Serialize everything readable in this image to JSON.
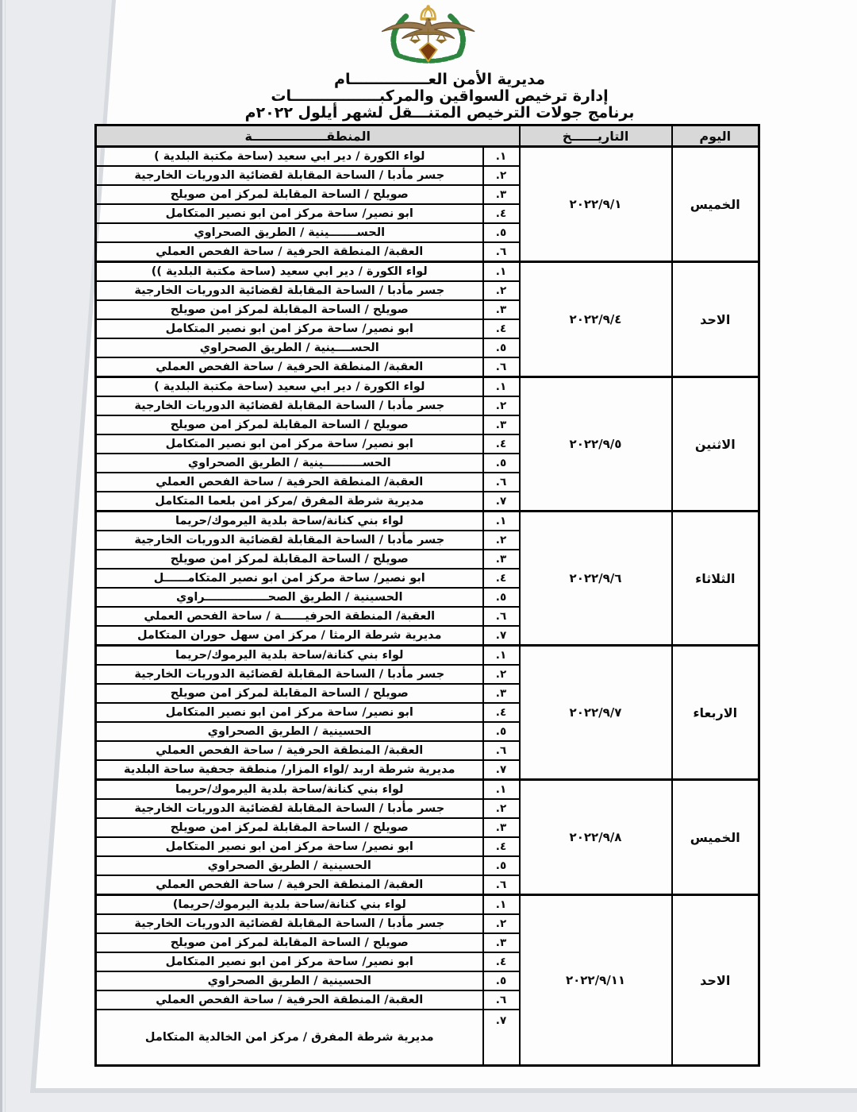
{
  "header": {
    "org_line1": "مديرية الأمن العـــــــــــــــام",
    "org_line2": "إدارة ترخيص السواقين والمركبـــــــــــــــــات",
    "program_title": "برنامج جولات الترخيص المتنـــقل لشهر  أيلول   ٢٠٢٢م"
  },
  "logo": {
    "name": "jordan-public-security-emblem",
    "colors": {
      "wreath": "#2e8540",
      "eagle": "#97774b",
      "eagle_dark": "#6e5431",
      "crown": "#d2a73e",
      "scales": "#8a6d2f",
      "shield": "#7a3b10",
      "shield_border": "#caa23a"
    }
  },
  "colors": {
    "header_bg": "#d8d8d8",
    "border": "#000000",
    "paper": "#fdfdfe",
    "page_background": "#e9ebef"
  },
  "table": {
    "headers": {
      "day": "اليوم",
      "date": "التاريــــــخ",
      "area": "المنطقـــــــــــــــــة"
    },
    "blocks": [
      {
        "day": "الخميس",
        "date": "٢٠٢٢/٩/١",
        "rows": [
          {
            "num": "١.",
            "area": "لواء الكورة / دير ابي سعيد (ساحة مكتبة البلدية )"
          },
          {
            "num": "٢.",
            "area": "جسر مأدبا / الساحة المقابلة لقضائية الدوريات الخارجية"
          },
          {
            "num": "٣.",
            "area": "صويلح / الساحة المقابلة لمركز امن صويلح"
          },
          {
            "num": "٤.",
            "area": "ابو نصير/ ساحة مركز امن ابو نصير المتكامل"
          },
          {
            "num": "٥.",
            "area": "الحســـــــينية / الطريق الصحراوي"
          },
          {
            "num": "٦.",
            "area": "العقبة/ المنطقة الحرفية / ساحة الفحص العملي"
          }
        ]
      },
      {
        "day": "الاحد",
        "date": "٢٠٢٢/٩/٤",
        "rows": [
          {
            "num": "١.",
            "area": "لواء الكورة / دير ابي سعيد (ساحة مكتبة البلدية ))"
          },
          {
            "num": "٢.",
            "area": "جسر مأدبا / الساحة المقابلة لقضائية الدوريات الخارجية"
          },
          {
            "num": "٣.",
            "area": "صويلح / الساحة المقابلة لمركز امن صويلح"
          },
          {
            "num": "٤.",
            "area": "ابو نصير/ ساحة مركز امن ابو نصير المتكامل"
          },
          {
            "num": "٥.",
            "area": "الحســــينية / الطريق الصحراوي"
          },
          {
            "num": "٦.",
            "area": "العقبة/ المنطقة الحرفية / ساحة الفحص العملي"
          }
        ]
      },
      {
        "day": "الاثنين",
        "date": "٢٠٢٢/٩/٥",
        "rows": [
          {
            "num": "١.",
            "area": "لواء الكورة / دير ابي سعيد (ساحة مكتبة البلدية )"
          },
          {
            "num": "٢.",
            "area": "جسر مأدبا / الساحة المقابلة لقضائية الدوريات الخارجية"
          },
          {
            "num": "٣.",
            "area": "صويلح / الساحة المقابلة لمركز امن صويلح"
          },
          {
            "num": "٤.",
            "area": "ابو نصير/ ساحة مركز امن ابو نصير المتكامل"
          },
          {
            "num": "٥.",
            "area": "الحســــــــــينية / الطريق الصحراوي"
          },
          {
            "num": "٦.",
            "area": "العقبة/ المنطقة الحرفية / ساحة الفحص العملي"
          },
          {
            "num": "٧.",
            "area": "مديرية شرطة المفرق /مركز امن بلعما المتكامل"
          }
        ]
      },
      {
        "day": "الثلاثاء",
        "date": "٢٠٢٢/٩/٦",
        "rows": [
          {
            "num": "١.",
            "area": "لواء بني كنانة/ساحة بلدية اليرموك/حريما"
          },
          {
            "num": "٢.",
            "area": "جسر مأدبا / الساحة المقابلة لقضائية الدوريات الخارجية"
          },
          {
            "num": "٣.",
            "area": "صويلح / الساحة المقابلة لمركز امن صويلح"
          },
          {
            "num": "٤.",
            "area": "ابو نصير/ ساحة مركز امن ابو نصير المتكامــــــل"
          },
          {
            "num": "٥.",
            "area": "الحسينية / الطريق الصحــــــــــــــــراوي"
          },
          {
            "num": "٦.",
            "area": "العقبة/ المنطقة الحرفيــــــة / ساحة الفحص العملي"
          },
          {
            "num": "٧.",
            "area": "مديرية شرطة الرمثا / مركز امن سهل حوران المتكامل"
          }
        ]
      },
      {
        "day": "الاربعاء",
        "date": "٢٠٢٢/٩/٧",
        "rows": [
          {
            "num": "١.",
            "area": "لواء بني كنانة/ساحة بلدية اليرموك/حريما"
          },
          {
            "num": "٢.",
            "area": "جسر مأدبا / الساحة المقابلة لقضائية الدوريات الخارجية"
          },
          {
            "num": "٣.",
            "area": "صويلح / الساحة المقابلة لمركز امن صويلح"
          },
          {
            "num": "٤.",
            "area": "ابو نصير/ ساحة مركز امن ابو نصير المتكامل"
          },
          {
            "num": "٥.",
            "area": "الحسينية / الطريق الصحراوي"
          },
          {
            "num": "٦.",
            "area": "العقبة/ المنطقة الحرفية / ساحة الفحص العملي"
          },
          {
            "num": "٧.",
            "area": "مديرية شرطة اربد  /لواء المزار/ منطقة جحفية ساحة البلدية"
          }
        ]
      },
      {
        "day": "الخميس",
        "date": "٢٠٢٢/٩/٨",
        "rows": [
          {
            "num": "١.",
            "area": "لواء بني كنانة/ساحة بلدية اليرموك/حريما"
          },
          {
            "num": "٢.",
            "area": "جسر مأدبا / الساحة المقابلة لقضائية الدوريات الخارجية"
          },
          {
            "num": "٣.",
            "area": "صويلح / الساحة المقابلة لمركز امن صويلح"
          },
          {
            "num": "٤.",
            "area": "ابو نصير/ ساحة مركز امن ابو نصير المتكامل"
          },
          {
            "num": "٥.",
            "area": "الحسينية / الطريق الصحراوي"
          },
          {
            "num": "٦.",
            "area": "العقبة/ المنطقة الحرفية / ساحة الفحص العملي"
          }
        ]
      },
      {
        "day": "الاحد",
        "date": "٢٠٢٢/٩/١١",
        "rows": [
          {
            "num": "١.",
            "area": "لواء بني كنانة/ساحة بلدية اليرموك/حريما)"
          },
          {
            "num": "٢.",
            "area": "جسر مأدبا / الساحة المقابلة لقضائية الدوريات الخارجية"
          },
          {
            "num": "٣.",
            "area": "صويلح / الساحة المقابلة لمركز امن صويلح"
          },
          {
            "num": "٤.",
            "area": "ابو نصير/ ساحة مركز امن ابو نصير المتكامل"
          },
          {
            "num": "٥.",
            "area": "الحسينية / الطريق الصحراوي"
          },
          {
            "num": "٦.",
            "area": "العقبة/ المنطقة الحرفية / ساحة الفحص العملي"
          },
          {
            "num": "٧.",
            "area": "مديرية شرطة المفرق / مركز امن الخالدية المتكامل",
            "tall": true
          }
        ]
      }
    ]
  }
}
